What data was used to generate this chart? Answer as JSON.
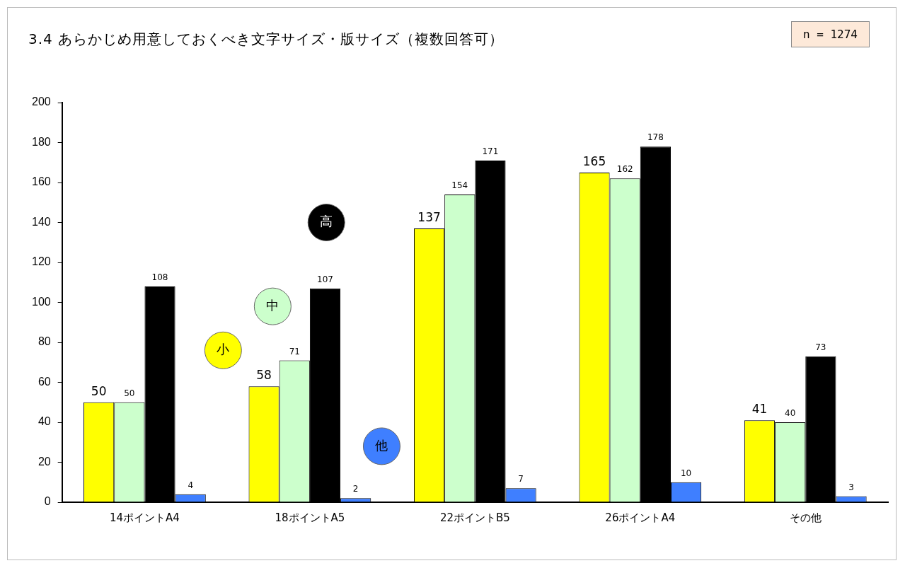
{
  "chart_data": {
    "type": "bar",
    "title": "3.4 あらかじめ用意しておくべき文字サイズ・版サイズ（複数回答可）",
    "annotations": [
      "n = 1274"
    ],
    "categories": [
      "14ポイントA4",
      "18ポイントA5",
      "22ポイントB5",
      "26ポイントA4",
      "その他"
    ],
    "series": [
      {
        "name": "小",
        "color": "#ffff00",
        "values": [
          50,
          58,
          137,
          165,
          41
        ]
      },
      {
        "name": "中",
        "color": "#ccffcc",
        "values": [
          50,
          71,
          154,
          162,
          40
        ]
      },
      {
        "name": "高",
        "color": "#000000",
        "values": [
          108,
          107,
          171,
          178,
          73
        ]
      },
      {
        "name": "他",
        "color": "#3f7fff",
        "values": [
          4,
          2,
          7,
          10,
          3
        ]
      }
    ],
    "ylim": [
      0,
      200
    ],
    "yticks": [
      0,
      20,
      40,
      60,
      80,
      100,
      120,
      140,
      160,
      180,
      200
    ],
    "grid": false,
    "legend": "left",
    "data_labels": true
  }
}
